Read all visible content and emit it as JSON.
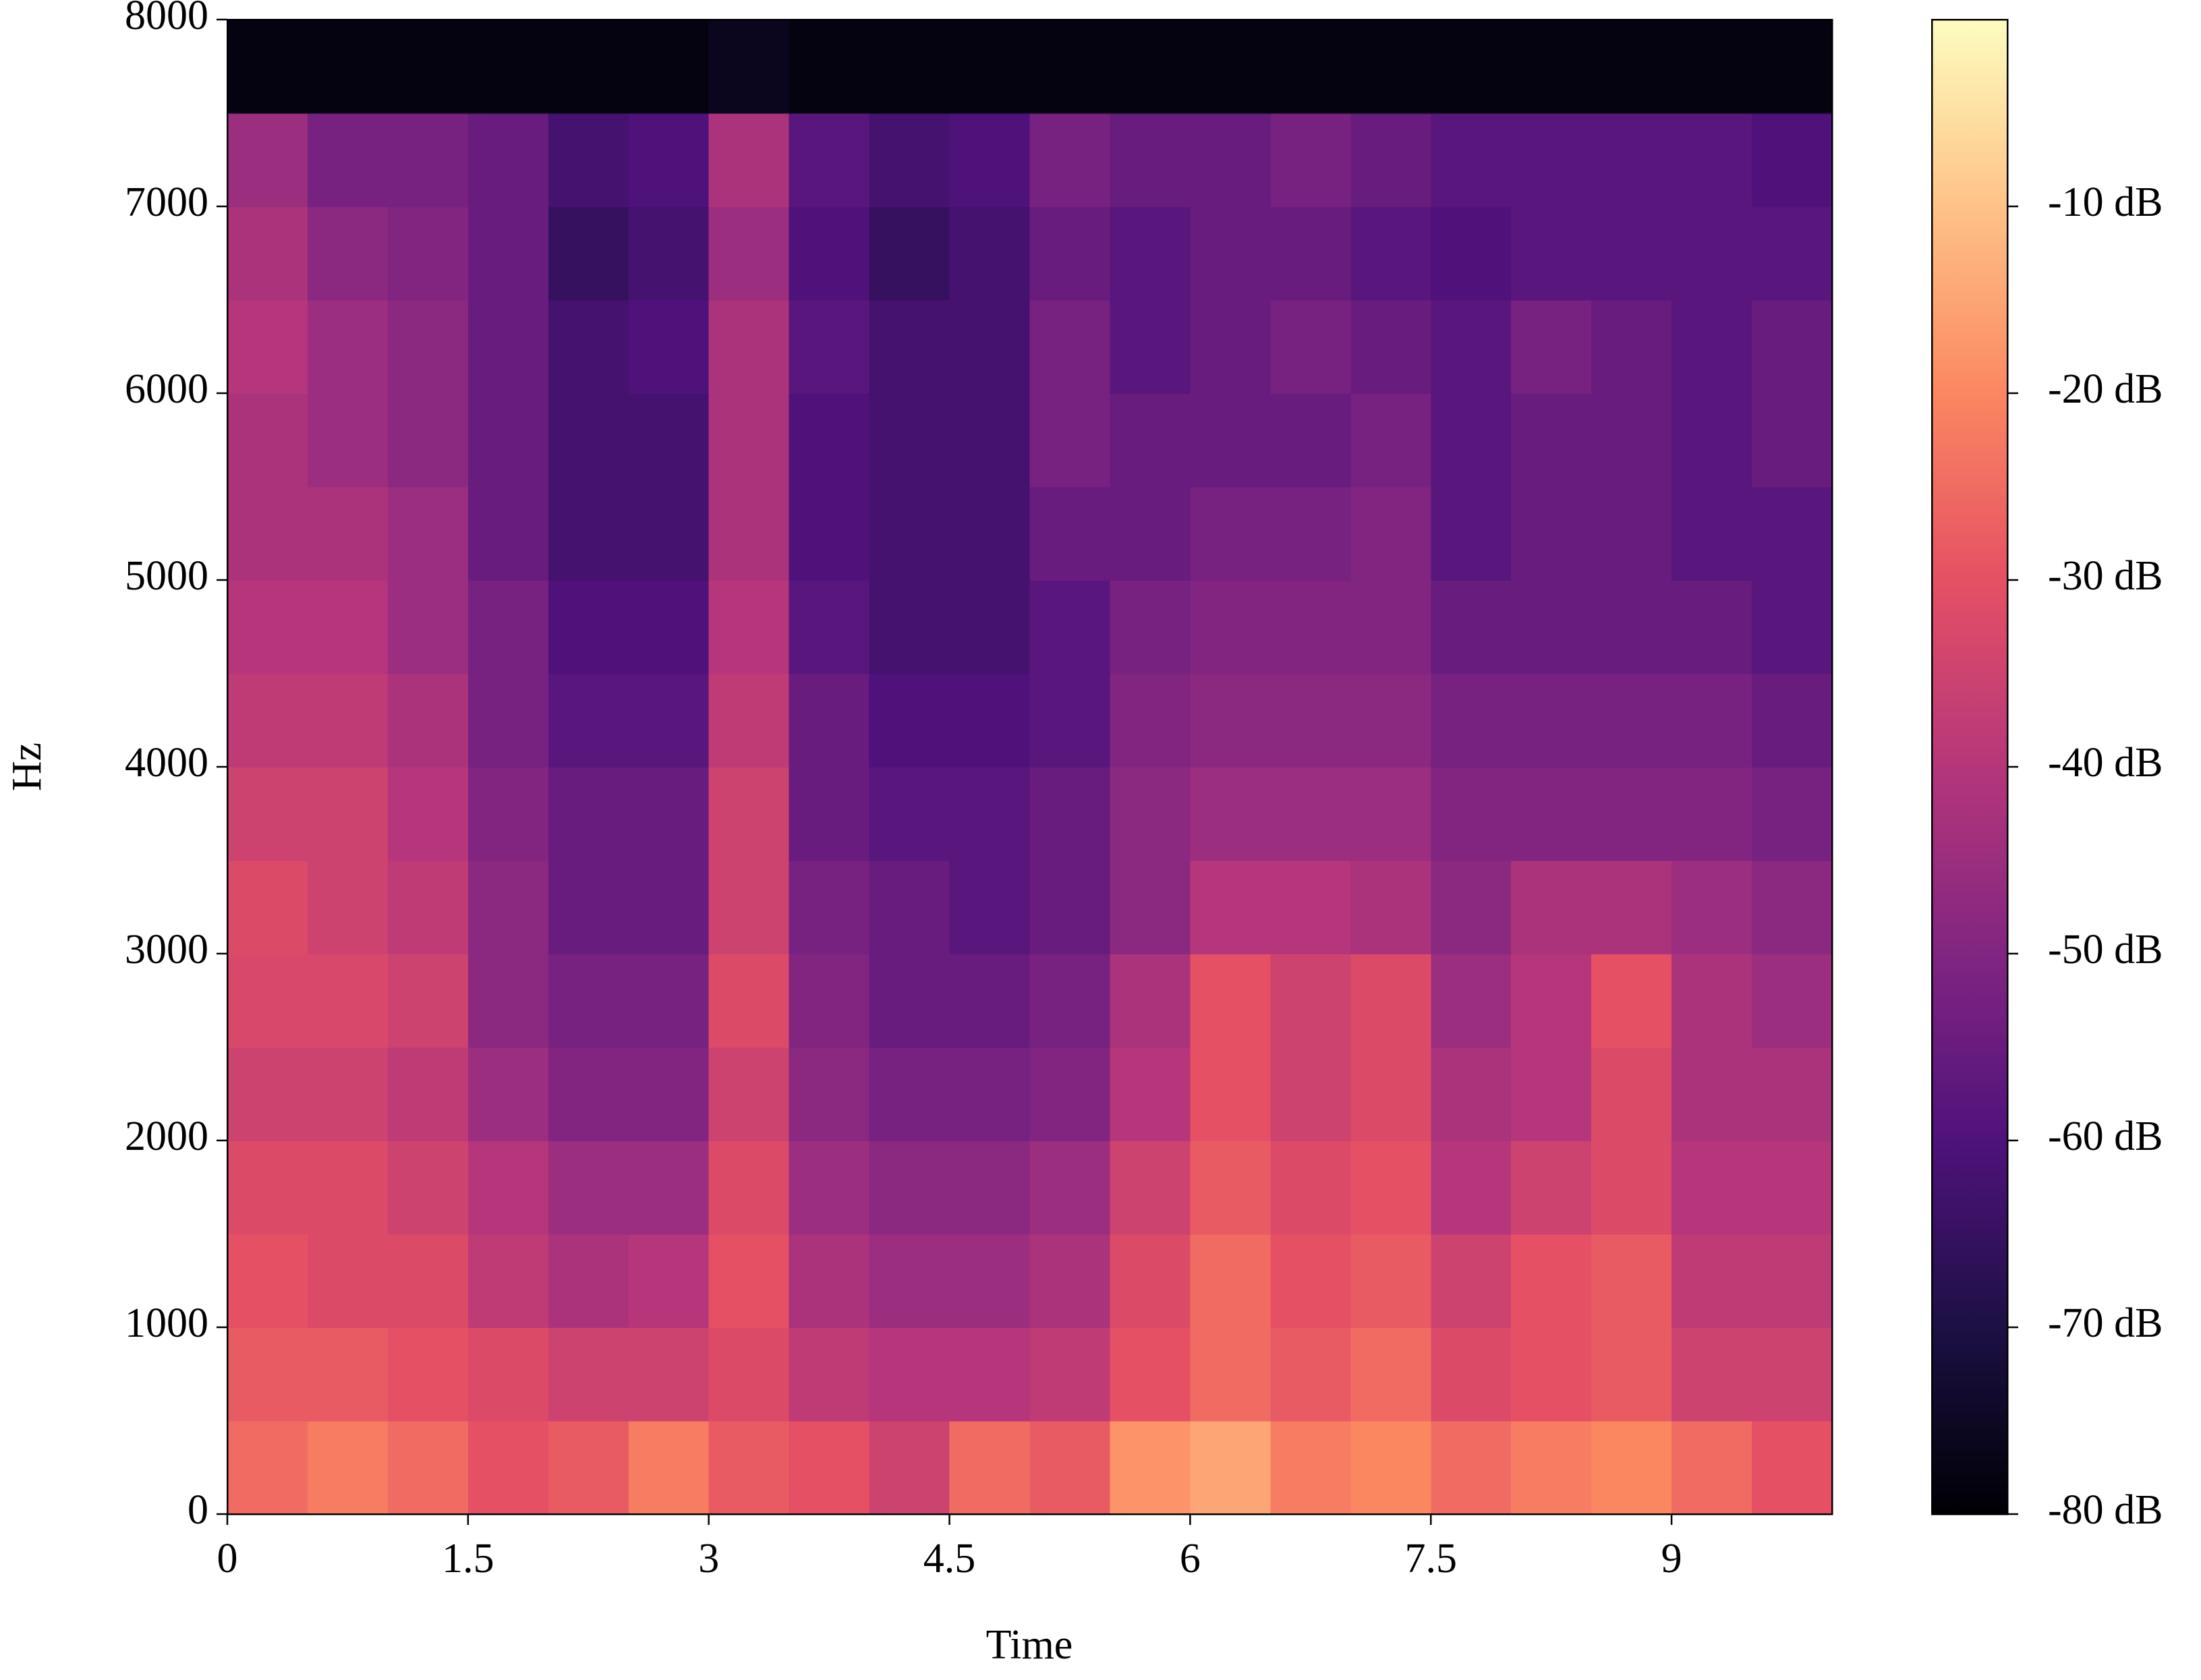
{
  "chart_data": {
    "type": "heatmap",
    "x_label": "Time",
    "y_label": "Hz",
    "xlim": [
      0,
      10
    ],
    "xticks": [
      0,
      1.5,
      3,
      4.5,
      6,
      7.5,
      9
    ],
    "ylim": [
      0,
      8000
    ],
    "yticks": [
      0,
      1000,
      2000,
      3000,
      4000,
      5000,
      6000,
      7000,
      8000
    ],
    "colormap": "magma",
    "clim": [
      -80,
      0
    ],
    "cticks": [
      {
        "value": -10,
        "label": "-10 dB"
      },
      {
        "value": -20,
        "label": "-20 dB"
      },
      {
        "value": -30,
        "label": "-30 dB"
      },
      {
        "value": -40,
        "label": "-40 dB"
      },
      {
        "value": -50,
        "label": "-50 dB"
      },
      {
        "value": -60,
        "label": "-60 dB"
      },
      {
        "value": -70,
        "label": "-70 dB"
      },
      {
        "value": -80,
        "label": "-80 dB"
      }
    ],
    "z": [
      [
        -25,
        -22,
        -25,
        -30,
        -28,
        -22,
        -28,
        -30,
        -35,
        -25,
        -28,
        -18,
        -15,
        -22,
        -20,
        -25,
        -22,
        -20,
        -25,
        -30
      ],
      [
        -28,
        -28,
        -30,
        -32,
        -35,
        -35,
        -32,
        -38,
        -40,
        -40,
        -38,
        -30,
        -25,
        -28,
        -25,
        -32,
        -30,
        -28,
        -35,
        -35
      ],
      [
        -30,
        -32,
        -32,
        -38,
        -42,
        -40,
        -30,
        -42,
        -45,
        -45,
        -42,
        -32,
        -25,
        -30,
        -28,
        -35,
        -30,
        -28,
        -38,
        -38
      ],
      [
        -32,
        -32,
        -35,
        -40,
        -45,
        -45,
        -32,
        -45,
        -48,
        -48,
        -45,
        -35,
        -28,
        -32,
        -30,
        -40,
        -35,
        -32,
        -40,
        -40
      ],
      [
        -35,
        -35,
        -38,
        -45,
        -50,
        -50,
        -35,
        -48,
        -52,
        -52,
        -50,
        -40,
        -30,
        -35,
        -32,
        -42,
        -40,
        -32,
        -42,
        -42
      ],
      [
        -33,
        -33,
        -35,
        -48,
        -52,
        -52,
        -32,
        -50,
        -55,
        -55,
        -52,
        -42,
        -30,
        -35,
        -32,
        -45,
        -40,
        -30,
        -42,
        -45
      ],
      [
        -32,
        -35,
        -38,
        -48,
        -55,
        -55,
        -35,
        -52,
        -55,
        -58,
        -55,
        -48,
        -40,
        -40,
        -42,
        -48,
        -42,
        -42,
        -45,
        -48
      ],
      [
        -35,
        -35,
        -40,
        -50,
        -55,
        -55,
        -35,
        -55,
        -58,
        -58,
        -55,
        -48,
        -45,
        -45,
        -45,
        -50,
        -50,
        -50,
        -50,
        -52
      ],
      [
        -38,
        -38,
        -42,
        -52,
        -58,
        -58,
        -38,
        -55,
        -60,
        -60,
        -58,
        -50,
        -48,
        -48,
        -48,
        -52,
        -52,
        -52,
        -52,
        -55
      ],
      [
        -40,
        -40,
        -45,
        -52,
        -60,
        -60,
        -40,
        -58,
        -62,
        -62,
        -58,
        -52,
        -50,
        -50,
        -50,
        -55,
        -55,
        -55,
        -55,
        -58
      ],
      [
        -42,
        -42,
        -45,
        -55,
        -62,
        -62,
        -42,
        -60,
        -62,
        -62,
        -55,
        -55,
        -52,
        -52,
        -50,
        -58,
        -55,
        -55,
        -58,
        -58
      ],
      [
        -42,
        -45,
        -48,
        -55,
        -62,
        -62,
        -42,
        -60,
        -62,
        -62,
        -52,
        -55,
        -55,
        -55,
        -52,
        -58,
        -55,
        -55,
        -58,
        -55
      ],
      [
        -40,
        -45,
        -48,
        -55,
        -62,
        -60,
        -42,
        -58,
        -62,
        -62,
        -52,
        -58,
        -55,
        -52,
        -55,
        -58,
        -52,
        -55,
        -58,
        -55
      ],
      [
        -42,
        -48,
        -50,
        -55,
        -65,
        -62,
        -45,
        -60,
        -65,
        -62,
        -55,
        -58,
        -55,
        -55,
        -58,
        -60,
        -58,
        -58,
        -58,
        -58
      ],
      [
        -45,
        -52,
        -52,
        -55,
        -62,
        -60,
        -42,
        -58,
        -62,
        -60,
        -52,
        -55,
        -55,
        -52,
        -55,
        -58,
        -58,
        -58,
        -58,
        -60
      ],
      [
        -78,
        -78,
        -78,
        -78,
        -78,
        -78,
        -76,
        -78,
        -78,
        -78,
        -78,
        -78,
        -78,
        -78,
        -78,
        -78,
        -78,
        -78,
        -78,
        -78
      ]
    ]
  }
}
